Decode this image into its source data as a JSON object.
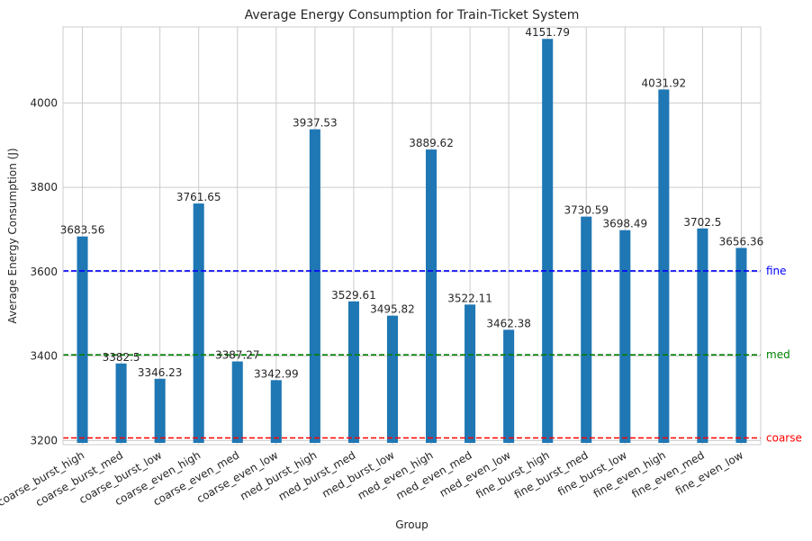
{
  "chart_data": {
    "type": "bar",
    "title": "Average Energy Consumption for Train-Ticket System",
    "xlabel": "Group",
    "ylabel": "Average Energy Consumption (J)",
    "ylim": [
      3190,
      4180
    ],
    "yticks": [
      3200,
      3400,
      3600,
      3800,
      4000
    ],
    "grid": true,
    "bar_color": "#1f77b4",
    "categories": [
      "coarse_burst_high",
      "coarse_burst_med",
      "coarse_burst_low",
      "coarse_even_high",
      "coarse_even_med",
      "coarse_even_low",
      "med_burst_high",
      "med_burst_med",
      "med_burst_low",
      "med_even_high",
      "med_even_med",
      "med_even_low",
      "fine_burst_high",
      "fine_burst_med",
      "fine_burst_low",
      "fine_even_high",
      "fine_even_med",
      "fine_even_low"
    ],
    "values": [
      3683.56,
      3382.5,
      3346.23,
      3761.65,
      3387.27,
      3342.99,
      3937.53,
      3529.61,
      3495.82,
      3889.62,
      3522.11,
      3462.38,
      4151.79,
      3730.59,
      3698.49,
      4031.92,
      3702.5,
      3656.36
    ],
    "value_labels": [
      "3683.56",
      "3382.5",
      "3346.23",
      "3761.65",
      "3387.27",
      "3342.99",
      "3937.53",
      "3529.61",
      "3495.82",
      "3889.62",
      "3522.11",
      "3462.38",
      "4151.79",
      "3730.59",
      "3698.49",
      "4031.92",
      "3702.5",
      "3656.36"
    ],
    "reference_lines": [
      {
        "label": "fine",
        "value": 3602,
        "color": "#0000ff"
      },
      {
        "label": "med",
        "value": 3403,
        "color": "#008000"
      },
      {
        "label": "coarse",
        "value": 3206,
        "color": "#ff0000"
      }
    ]
  }
}
